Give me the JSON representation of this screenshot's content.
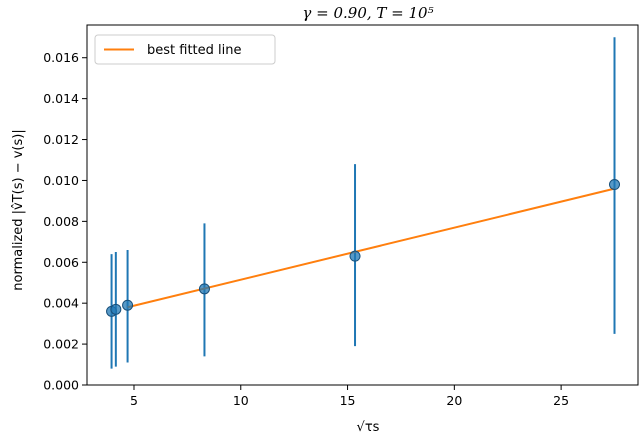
{
  "chart_data": {
    "type": "scatter",
    "title": "γ = 0.90, T = 10⁵",
    "xlabel": "√τs",
    "ylabel": "normalized |v̂T(s) − v(s)|",
    "xlim": [
      2.8,
      28.6
    ],
    "ylim": [
      0,
      0.0176
    ],
    "xticks": [
      5,
      10,
      15,
      20,
      25
    ],
    "yticks": [
      0.0,
      0.002,
      0.004,
      0.006,
      0.008,
      0.01,
      0.012,
      0.014,
      0.016
    ],
    "ytick_labels": [
      "0.000",
      "0.002",
      "0.004",
      "0.006",
      "0.008",
      "0.010",
      "0.012",
      "0.014",
      "0.016"
    ],
    "grid": false,
    "legend": {
      "position": "top-left",
      "entries": [
        "best fitted line"
      ]
    },
    "points": {
      "color": "#1f77b4",
      "data": [
        {
          "x": 3.95,
          "y": 0.0036,
          "ylo": 0.0008,
          "yhi": 0.0064
        },
        {
          "x": 4.15,
          "y": 0.0037,
          "ylo": 0.0009,
          "yhi": 0.0065
        },
        {
          "x": 4.7,
          "y": 0.0039,
          "ylo": 0.0011,
          "yhi": 0.0066
        },
        {
          "x": 8.3,
          "y": 0.0047,
          "ylo": 0.0014,
          "yhi": 0.0079
        },
        {
          "x": 15.35,
          "y": 0.0063,
          "ylo": 0.0019,
          "yhi": 0.0108
        },
        {
          "x": 27.5,
          "y": 0.0098,
          "ylo": 0.0025,
          "yhi": 0.017
        }
      ]
    },
    "series": [
      {
        "name": "best fitted line",
        "color": "#ff7f0e",
        "x": [
          4.7,
          27.5
        ],
        "y": [
          0.0038,
          0.0096
        ]
      }
    ]
  }
}
